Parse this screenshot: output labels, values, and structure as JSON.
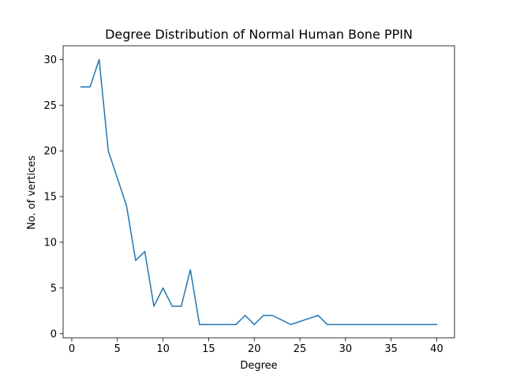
{
  "chart_data": {
    "type": "line",
    "title": "Degree Distribution of Normal Human Bone PPIN",
    "xlabel": "Degree",
    "ylabel": "No. of vertices",
    "xlim": [
      -0.95,
      41.95
    ],
    "ylim": [
      -0.45,
      31.5
    ],
    "xticks": [
      0,
      5,
      10,
      15,
      20,
      25,
      30,
      35,
      40
    ],
    "xtick_labels": [
      "0",
      "5",
      "10",
      "15",
      "20",
      "25",
      "30",
      "35",
      "40"
    ],
    "yticks": [
      0,
      5,
      10,
      15,
      20,
      25,
      30
    ],
    "ytick_labels": [
      "0",
      "5",
      "10",
      "15",
      "20",
      "25",
      "30"
    ],
    "grid": false,
    "series": [
      {
        "color": "#1f77b4",
        "x": [
          1,
          2,
          3,
          4,
          5,
          6,
          7,
          8,
          9,
          10,
          11,
          12,
          13,
          14,
          15,
          16,
          17,
          18,
          19,
          20,
          21,
          22,
          24,
          25,
          26,
          27,
          28,
          29,
          30,
          31,
          32,
          33,
          34,
          35,
          36,
          37,
          38,
          39,
          40
        ],
        "y": [
          27,
          27,
          30,
          20,
          17,
          14,
          8,
          9,
          3,
          5,
          3,
          3,
          7,
          1,
          1,
          1,
          1,
          1,
          2,
          1,
          2,
          2,
          1,
          1.33,
          1.67,
          2,
          1,
          1,
          1,
          1,
          1,
          1,
          1,
          1,
          1,
          1,
          1,
          1,
          1
        ]
      }
    ]
  }
}
